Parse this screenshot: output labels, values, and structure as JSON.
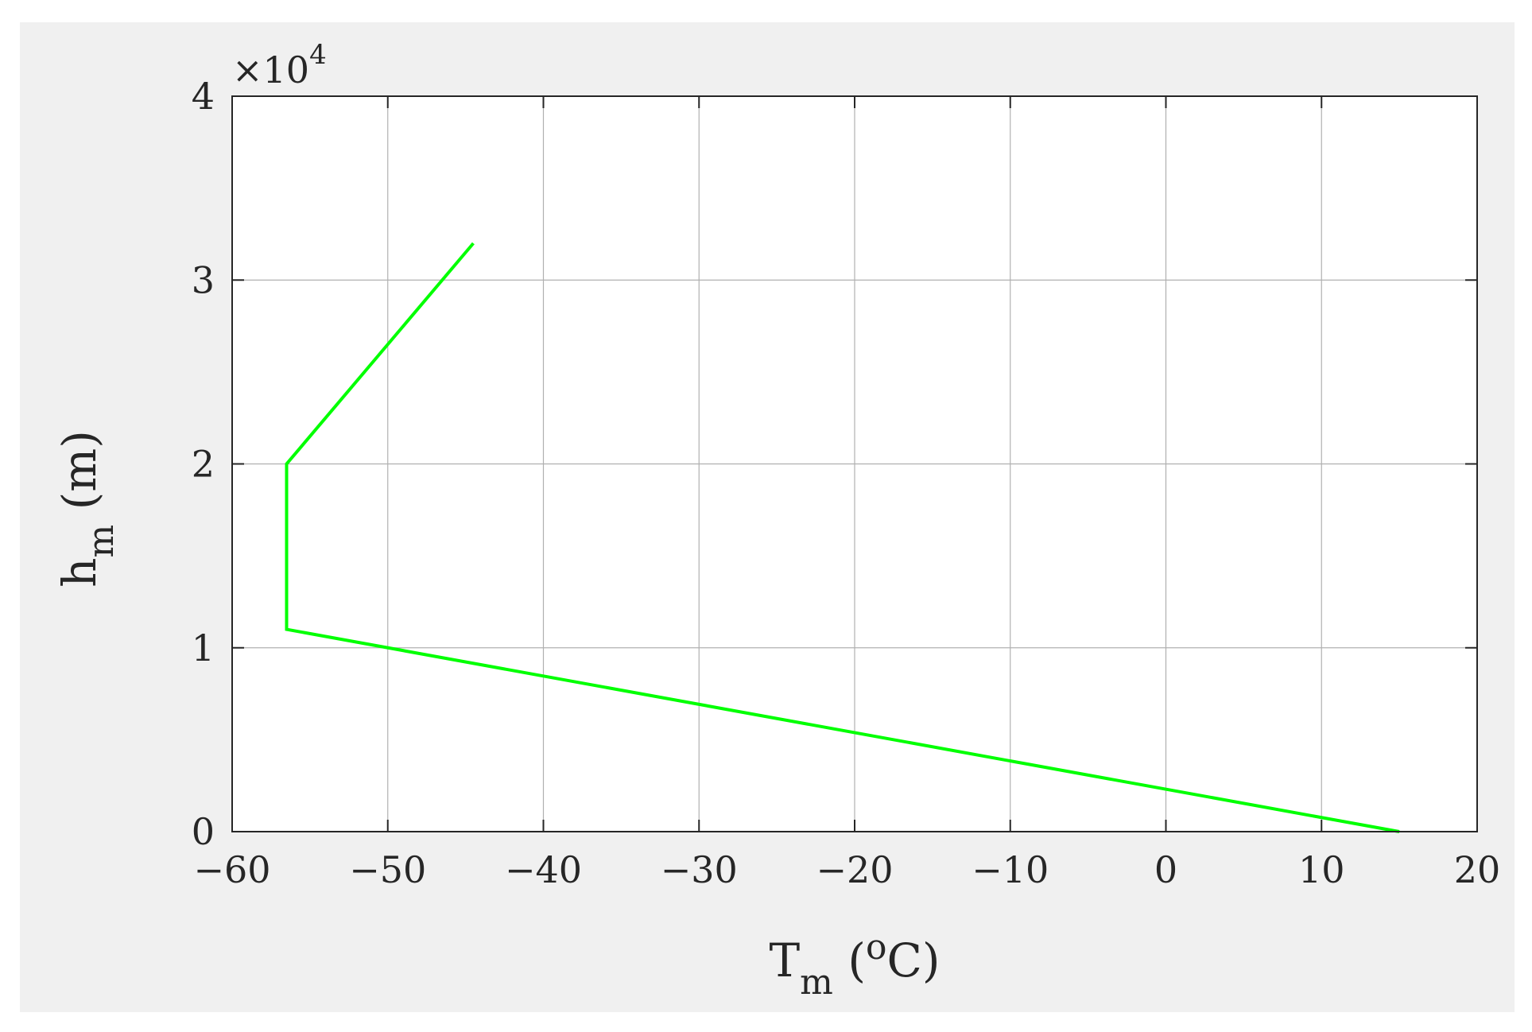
{
  "chart_data": {
    "type": "line",
    "title": "",
    "xlabel": {
      "main": "T",
      "sub": "m",
      "rest": " (",
      "sup": "o",
      "tail": "C)"
    },
    "ylabel": {
      "main": "h",
      "sub": "m",
      "rest": " (m)"
    },
    "xlim": [
      -60,
      20
    ],
    "ylim": [
      0,
      40000
    ],
    "xticks": [
      -60,
      -50,
      -40,
      -30,
      -20,
      -10,
      0,
      10,
      20
    ],
    "yticks": [
      0,
      10000,
      20000,
      30000,
      40000
    ],
    "xtick_labels": [
      "−60",
      "−50",
      "−40",
      "−30",
      "−20",
      "−10",
      "0",
      "10",
      "20"
    ],
    "ytick_labels": [
      "0",
      "1",
      "2",
      "3",
      "4"
    ],
    "y_exponent": {
      "base": "×10",
      "power": "4"
    },
    "grid": true,
    "series": [
      {
        "color": "#00ff00",
        "x": [
          15,
          -56.5,
          -56.5,
          -44.5
        ],
        "y": [
          0,
          11000,
          20000,
          32000
        ]
      }
    ]
  },
  "colors": {
    "figure_background": "#f0f0f0",
    "axes_background": "#ffffff",
    "axis_color": "#262626",
    "grid_color": "#b0b0b0"
  }
}
